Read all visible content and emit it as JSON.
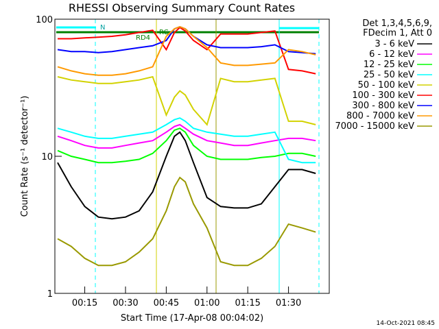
{
  "chart_data": {
    "type": "line",
    "title": "RHESSI Observing Summary Count Rates",
    "x_label": "Start Time (17-Apr-08 00:04:02)",
    "y_label": "Count Rate (s⁻¹ detector⁻¹)",
    "legend_header": [
      "Det 1,3,4,5,6,9,",
      "FDecim 1, Att 0"
    ],
    "annotations": [
      "N",
      "RD4",
      "RC"
    ],
    "footer": "14-Oct-2021 08:45",
    "log_y": true,
    "xlim": [
      4,
      105
    ],
    "xticks": [
      {
        "value": 15,
        "label": "00:15"
      },
      {
        "value": 30,
        "label": "00:30"
      },
      {
        "value": 45,
        "label": "00:45"
      },
      {
        "value": 60,
        "label": "01:00"
      },
      {
        "value": 75,
        "label": "01:15"
      },
      {
        "value": 90,
        "label": "01:30"
      }
    ],
    "ylim": [
      1,
      100
    ],
    "yticks": [
      1,
      10,
      100
    ],
    "x": [
      5,
      10,
      15,
      20,
      25,
      30,
      35,
      40,
      45,
      48,
      50,
      52,
      55,
      60,
      65,
      70,
      75,
      80,
      85,
      90,
      95,
      100
    ],
    "series": [
      {
        "name": "3 - 6 keV",
        "color": "#000000",
        "values": [
          9,
          6,
          4.3,
          3.6,
          3.5,
          3.6,
          4,
          5.5,
          10,
          14,
          15,
          13,
          9,
          5,
          4.3,
          4.2,
          4.2,
          4.5,
          6,
          8,
          8,
          7.5
        ]
      },
      {
        "name": "6 - 12 keV",
        "color": "#ff00ff",
        "values": [
          14,
          13,
          12,
          11.5,
          11.5,
          12,
          12.5,
          13,
          15,
          16.5,
          17,
          16,
          14.5,
          13,
          12.5,
          12,
          12,
          12.5,
          13,
          13.5,
          13.5,
          13
        ]
      },
      {
        "name": "12 - 25 keV",
        "color": "#00ff00",
        "values": [
          11,
          10,
          9.5,
          9,
          9,
          9.2,
          9.5,
          10.5,
          13,
          15.5,
          16,
          15,
          12,
          10,
          9.5,
          9.5,
          9.5,
          9.8,
          10,
          10.5,
          10.5,
          10
        ]
      },
      {
        "name": "25 - 50 keV",
        "color": "#00ffff",
        "values": [
          16,
          15,
          14,
          13.5,
          13.5,
          14,
          14.5,
          15,
          17,
          18.5,
          19,
          18,
          16,
          15,
          14.5,
          14,
          14,
          14.5,
          15,
          9.5,
          9,
          9
        ]
      },
      {
        "name": "50 - 100 keV",
        "color": "#d2d200",
        "values": [
          38,
          36,
          35,
          34,
          34,
          35,
          36,
          38,
          20,
          27,
          30,
          28,
          22,
          17,
          37,
          35,
          35,
          36,
          37,
          18,
          18,
          17
        ]
      },
      {
        "name": "100 - 300 keV",
        "color": "#ff0000",
        "values": [
          72,
          72,
          73,
          74,
          75,
          77,
          80,
          83,
          60,
          80,
          87,
          82,
          70,
          60,
          78,
          78,
          78,
          80,
          82,
          43,
          42,
          40
        ]
      },
      {
        "name": "300 - 800 keV",
        "color": "#0000ff",
        "values": [
          60,
          58,
          58,
          57,
          58,
          60,
          62,
          64,
          70,
          85,
          88,
          85,
          75,
          65,
          62,
          62,
          62,
          63,
          65,
          58,
          57,
          56
        ]
      },
      {
        "name": "800 - 7000 keV",
        "color": "#ff9900",
        "values": [
          45,
          42,
          40,
          39,
          39,
          40,
          42,
          45,
          75,
          85,
          88,
          85,
          75,
          62,
          48,
          46,
          46,
          47,
          48,
          60,
          58,
          55
        ]
      },
      {
        "name": "7000 - 15000 keV",
        "color": "#999900",
        "values": [
          2.5,
          2.2,
          1.8,
          1.6,
          1.6,
          1.7,
          2,
          2.5,
          4,
          6,
          7,
          6.5,
          4.5,
          3,
          1.7,
          1.6,
          1.6,
          1.8,
          2.2,
          3.2,
          3,
          2.8
        ]
      }
    ]
  }
}
